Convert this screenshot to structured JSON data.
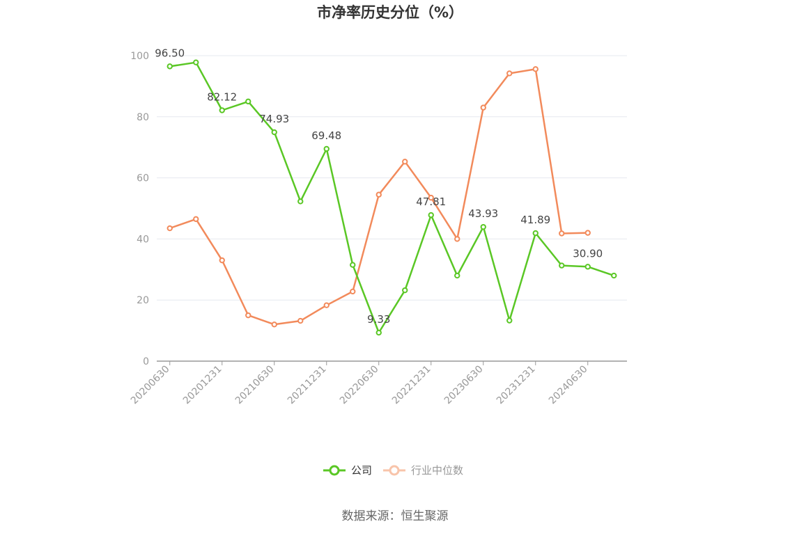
{
  "title": "市净率历史分位（%）",
  "source": "数据来源：恒生聚源",
  "colors": {
    "company": "#5ac725",
    "industry": "#f28a5b",
    "industry_legend": "#f8c4aa",
    "grid": "#e6e8ef",
    "axis": "#999999"
  },
  "chart_data": {
    "type": "line",
    "title": "市净率历史分位（%）",
    "x": [
      "20200630",
      "20200930",
      "20201231",
      "20210331",
      "20210630",
      "20210930",
      "20211231",
      "20220331",
      "20220630",
      "20220930",
      "20221231",
      "20230331",
      "20230630",
      "20230930",
      "20231231",
      "20240331",
      "20240630",
      "20240930"
    ],
    "xtick_labels": [
      "20200630",
      "20201231",
      "20210630",
      "20211231",
      "20220630",
      "20221231",
      "20230630",
      "20231231",
      "20240630"
    ],
    "ylim": [
      0,
      100
    ],
    "yticks": [
      0,
      20,
      40,
      60,
      80,
      100
    ],
    "grid": true,
    "legend_position": "bottom",
    "series": [
      {
        "name": "公司",
        "color": "#5ac725",
        "values": [
          96.5,
          97.8,
          82.12,
          85.0,
          74.93,
          52.3,
          69.48,
          31.5,
          9.33,
          23.2,
          47.81,
          28.0,
          43.93,
          13.3,
          41.89,
          31.3,
          30.9,
          28.0
        ],
        "labels": {
          "0": "96.50",
          "2": "82.12",
          "4": "74.93",
          "6": "69.48",
          "8": "9.33",
          "10": "47.81",
          "12": "43.93",
          "14": "41.89",
          "16": "30.90"
        }
      },
      {
        "name": "行业中位数",
        "color": "#f28a5b",
        "values": [
          43.5,
          46.5,
          33.0,
          15.0,
          12.0,
          13.2,
          18.3,
          22.8,
          54.5,
          65.3,
          53.5,
          40.0,
          83.0,
          94.2,
          95.6,
          41.8,
          42.0,
          null
        ]
      }
    ]
  }
}
